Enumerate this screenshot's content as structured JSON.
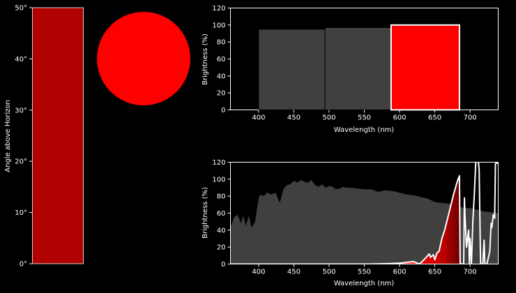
{
  "colors": {
    "background": "#000000",
    "foreground": "#ffffff",
    "elevation_bar": "#b00000",
    "sun": "#ff0000",
    "band_gray": "#404040",
    "band_highlight": "#ff0000",
    "spectrum_fill": "#404040",
    "visible_line": "#ffffff"
  },
  "chart_data": [
    {
      "type": "bar",
      "ylabel": "Angle above Horizon",
      "ylim": [
        0,
        50
      ],
      "yticks": [
        "0°",
        "10°",
        "20°",
        "30°",
        "40°",
        "50°"
      ],
      "values": [
        50
      ]
    },
    {
      "type": "scatter",
      "shape": "circle",
      "color": "#ff0000"
    },
    {
      "type": "bar",
      "xlabel": "Wavelength (nm)",
      "ylabel": "Brightness (%)",
      "xlim": [
        360,
        740
      ],
      "ylim": [
        0,
        120
      ],
      "xticks": [
        "400",
        "450",
        "500",
        "550",
        "600",
        "650",
        "700"
      ],
      "yticks": [
        "0",
        "20",
        "40",
        "60",
        "80",
        "100",
        "120"
      ],
      "bars": [
        {
          "x0": 400,
          "x1": 494,
          "value": 95,
          "color": "#404040"
        },
        {
          "x0": 494,
          "x1": 588,
          "value": 97,
          "color": "#404040"
        },
        {
          "x0": 588,
          "x1": 685,
          "value": 100,
          "color": "#ff0000",
          "highlight": true
        }
      ]
    },
    {
      "type": "area",
      "xlabel": "Wavelength (nm)",
      "ylabel": "Brightness (%)",
      "xlim": [
        360,
        740
      ],
      "ylim": [
        0,
        120
      ],
      "xticks": [
        "400",
        "450",
        "500",
        "550",
        "600",
        "650",
        "700"
      ],
      "yticks": [
        "0",
        "20",
        "40",
        "60",
        "80",
        "100",
        "120"
      ],
      "series": [
        {
          "values": [
            [
              360,
              43
            ],
            [
              365,
              55
            ],
            [
              370,
              58
            ],
            [
              375,
              48
            ],
            [
              378,
              57
            ],
            [
              382,
              45
            ],
            [
              386,
              57
            ],
            [
              390,
              43
            ],
            [
              395,
              50
            ],
            [
              400,
              78
            ],
            [
              403,
              82
            ],
            [
              407,
              80
            ],
            [
              412,
              84
            ],
            [
              418,
              82
            ],
            [
              424,
              84
            ],
            [
              430,
              72
            ],
            [
              435,
              88
            ],
            [
              440,
              93
            ],
            [
              445,
              94
            ],
            [
              450,
              98
            ],
            [
              455,
              96
            ],
            [
              460,
              99
            ],
            [
              465,
              97
            ],
            [
              470,
              96
            ],
            [
              475,
              99
            ],
            [
              480,
              93
            ],
            [
              485,
              91
            ],
            [
              490,
              94
            ],
            [
              495,
              90
            ],
            [
              500,
              92
            ],
            [
              505,
              91
            ],
            [
              510,
              88
            ],
            [
              515,
              89
            ],
            [
              520,
              91
            ],
            [
              525,
              90
            ],
            [
              530,
              90
            ],
            [
              540,
              89
            ],
            [
              550,
              88
            ],
            [
              560,
              88
            ],
            [
              570,
              85
            ],
            [
              580,
              87
            ],
            [
              590,
              86
            ],
            [
              600,
              84
            ],
            [
              610,
              82
            ],
            [
              620,
              81
            ],
            [
              630,
              79
            ],
            [
              640,
              77
            ],
            [
              650,
              73
            ],
            [
              660,
              72
            ],
            [
              670,
              71
            ],
            [
              680,
              70
            ],
            [
              690,
              66
            ],
            [
              700,
              66
            ],
            [
              710,
              64
            ],
            [
              720,
              62
            ],
            [
              730,
              61
            ],
            [
              740,
              60
            ]
          ]
        },
        {
          "values": [
            [
              360,
              0
            ],
            [
              420,
              0
            ],
            [
              500,
              0
            ],
            [
              560,
              0
            ],
            [
              585,
              0.5
            ],
            [
              600,
              1
            ],
            [
              610,
              2
            ],
            [
              620,
              3
            ],
            [
              628,
              0
            ],
            [
              632,
              3
            ],
            [
              638,
              8
            ],
            [
              642,
              12
            ],
            [
              644,
              8
            ],
            [
              648,
              11
            ],
            [
              650,
              5
            ],
            [
              653,
              13
            ],
            [
              656,
              15
            ],
            [
              660,
              30
            ],
            [
              664,
              40
            ],
            [
              670,
              60
            ],
            [
              676,
              80
            ],
            [
              680,
              92
            ],
            [
              683,
              100
            ],
            [
              685,
              104
            ],
            [
              686,
              1
            ],
            [
              688,
              0
            ],
            [
              691,
              0
            ],
            [
              692,
              78
            ],
            [
              693,
              55
            ],
            [
              695,
              20
            ],
            [
              698,
              40
            ],
            [
              699,
              0
            ],
            [
              700,
              30
            ],
            [
              702,
              0
            ],
            [
              704,
              50
            ],
            [
              706,
              80
            ],
            [
              707,
              100
            ],
            [
              708,
              118
            ],
            [
              710,
              140
            ],
            [
              712,
              120
            ],
            [
              713,
              110
            ],
            [
              715,
              0
            ],
            [
              718,
              0
            ],
            [
              720,
              28
            ],
            [
              721,
              0
            ],
            [
              724,
              0
            ],
            [
              728,
              15
            ],
            [
              730,
              48
            ],
            [
              731,
              43
            ],
            [
              733,
              58
            ],
            [
              735,
              54
            ],
            [
              736,
              118
            ],
            [
              738,
              120
            ],
            [
              740,
              118
            ]
          ]
        }
      ]
    }
  ]
}
